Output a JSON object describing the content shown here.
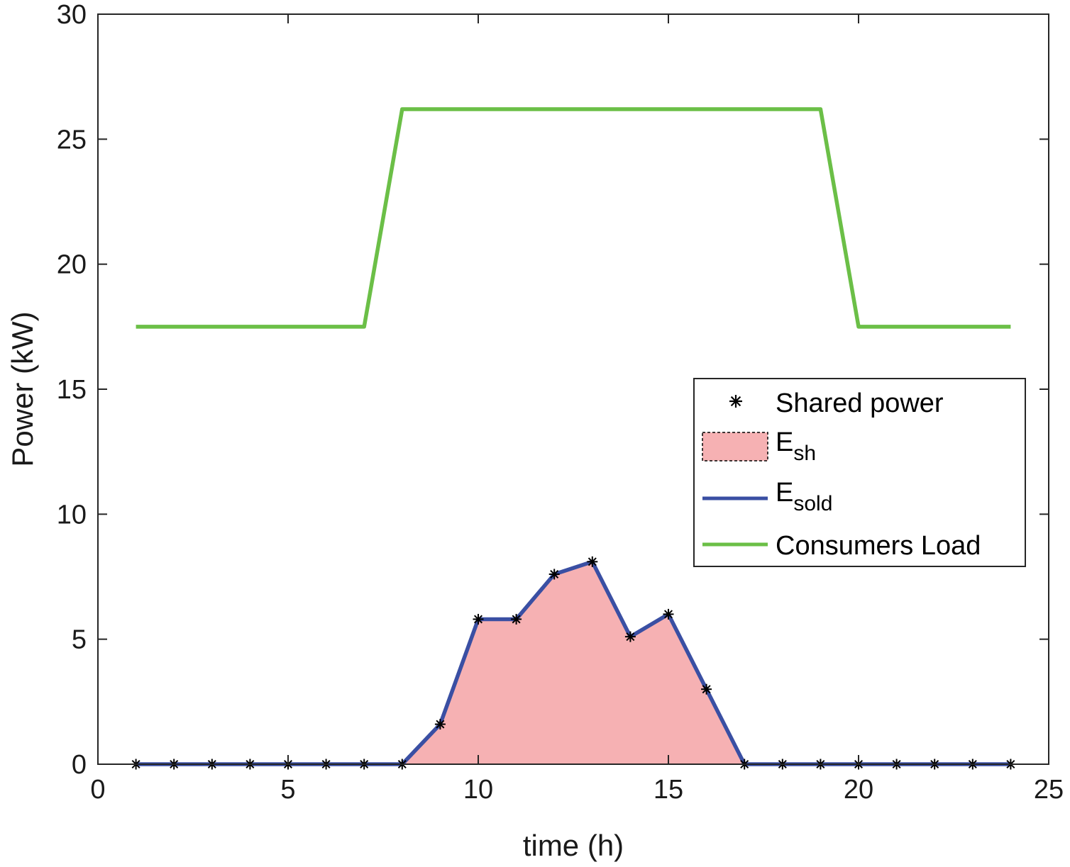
{
  "chart_data": {
    "type": "line",
    "title": "",
    "xlabel": "time (h)",
    "ylabel": "Power (kW)",
    "xlim": [
      0,
      25
    ],
    "ylim": [
      0,
      30
    ],
    "xticks": [
      0,
      5,
      10,
      15,
      20,
      25
    ],
    "yticks": [
      0,
      5,
      10,
      15,
      20,
      25,
      30
    ],
    "grid": false,
    "legend_position": "right",
    "x": [
      1,
      2,
      3,
      4,
      5,
      6,
      7,
      8,
      9,
      10,
      11,
      12,
      13,
      14,
      15,
      16,
      17,
      18,
      19,
      20,
      21,
      22,
      23,
      24
    ],
    "series": [
      {
        "name": "Shared power",
        "kind": "markers",
        "marker": "*",
        "color": "#000000",
        "values": [
          0,
          0,
          0,
          0,
          0,
          0,
          0,
          0,
          1.6,
          5.8,
          5.8,
          7.6,
          8.1,
          5.1,
          6.0,
          3.0,
          0,
          0,
          0,
          0,
          0,
          0,
          0,
          0
        ]
      },
      {
        "name": "E",
        "subscript": "sh",
        "kind": "area",
        "color": "#f6b1b3",
        "values": [
          0,
          0,
          0,
          0,
          0,
          0,
          0,
          0,
          1.6,
          5.8,
          5.8,
          7.6,
          8.1,
          5.1,
          6.0,
          3.0,
          0,
          0,
          0,
          0,
          0,
          0,
          0,
          0
        ]
      },
      {
        "name": "E",
        "subscript": "sold",
        "kind": "line",
        "color": "#3a4fa3",
        "values": [
          0,
          0,
          0,
          0,
          0,
          0,
          0,
          0,
          1.6,
          5.8,
          5.8,
          7.6,
          8.1,
          5.1,
          6.0,
          3.0,
          0,
          0,
          0,
          0,
          0,
          0,
          0,
          0
        ]
      },
      {
        "name": "Consumers Load",
        "kind": "line",
        "color": "#6bbf47",
        "values": [
          17.5,
          17.5,
          17.5,
          17.5,
          17.5,
          17.5,
          17.5,
          26.2,
          26.2,
          26.2,
          26.2,
          26.2,
          26.2,
          26.2,
          26.2,
          26.2,
          26.2,
          26.2,
          26.2,
          17.5,
          17.5,
          17.5,
          17.5,
          17.5
        ]
      }
    ]
  }
}
